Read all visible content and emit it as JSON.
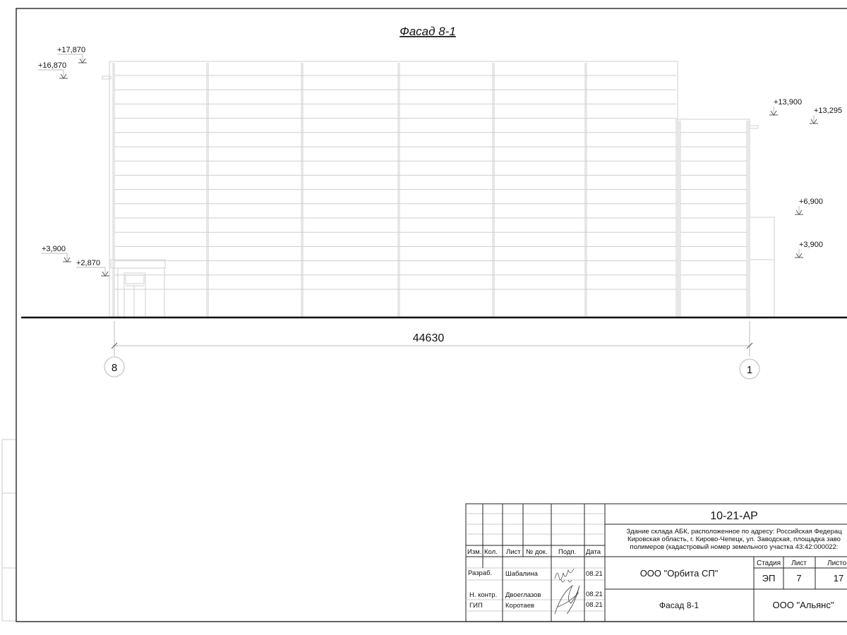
{
  "drawing": {
    "title": "Фасад 8-1",
    "dimension": "44630",
    "axes": [
      "8",
      "1"
    ],
    "levels_left": [
      "+17,870",
      "+16,870",
      "+3,900",
      "+2,870"
    ],
    "levels_right": [
      "+13,900",
      "+13,295",
      "+6,900",
      "+3,900"
    ]
  },
  "title_block": {
    "code": "10-21-АР",
    "address": [
      "Здание склада АБК, расположенное по адресу: Российская Федерац",
      "Кировская область, г. Кирово-Чепецк, ул. Заводская, площадка заво",
      "полимеров (кадастровый номер земельного участка 43:42:000022:"
    ],
    "headers": [
      "Изм.",
      "Кол.",
      "Лист",
      "№ док.",
      "Подп.",
      "Дата"
    ],
    "rows": [
      {
        "role": "Разраб.",
        "name": "Шабалина",
        "date": "08.21"
      },
      {
        "role": "Н. контр.",
        "name": "Двоеглазов",
        "date": "08.21"
      },
      {
        "role": "ГИП",
        "name": "Коротаев",
        "date": "08.21"
      }
    ],
    "organization": "ООО \"Орбита СП\"",
    "stage_header": "Стадия",
    "sheet_header": "Лист",
    "sheets_header": "Листо",
    "stage": "ЭП",
    "sheet": "7",
    "sheets": "17",
    "sheet_name": "Фасад 8-1",
    "company": "ООО \"Альянс\""
  }
}
